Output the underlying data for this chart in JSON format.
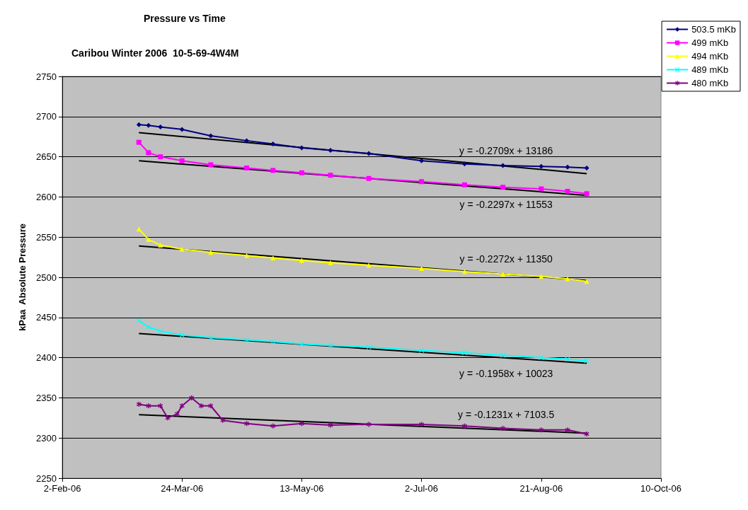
{
  "chart_data": {
    "type": "line",
    "title": "Pressure vs Time",
    "subtitle": "Caribou Winter 2006  10-5-69-4W4M",
    "ylabel": "kPaa  Absolute Pressure",
    "xlim": [
      "2006-02-02",
      "2006-10-10"
    ],
    "xticks": [
      {
        "value": "2006-02-02",
        "label": "2-Feb-06"
      },
      {
        "value": "2006-03-24",
        "label": "24-Mar-06"
      },
      {
        "value": "2006-05-13",
        "label": "13-May-06"
      },
      {
        "value": "2006-07-02",
        "label": "2-Jul-06"
      },
      {
        "value": "2006-08-21",
        "label": "21-Aug-06"
      },
      {
        "value": "2006-10-10",
        "label": "10-Oct-06"
      }
    ],
    "ylim": [
      2250,
      2750
    ],
    "yticks": [
      2250,
      2300,
      2350,
      2400,
      2450,
      2500,
      2550,
      2600,
      2650,
      2700,
      2750
    ],
    "grid": "y",
    "legend": "top right",
    "x": [
      "2006-03-06",
      "2006-03-10",
      "2006-03-15",
      "2006-03-24",
      "2006-04-05",
      "2006-04-20",
      "2006-05-01",
      "2006-05-13",
      "2006-05-25",
      "2006-06-10",
      "2006-07-02",
      "2006-07-20",
      "2006-08-05",
      "2006-08-21",
      "2006-09-01",
      "2006-09-09"
    ],
    "series": [
      {
        "name": "503.5 mKb",
        "color": "#000080",
        "marker": "diamond",
        "values": [
          2690,
          2689,
          2687,
          2684,
          2676,
          2670,
          2666,
          2661,
          2658,
          2654,
          2645,
          2641,
          2639,
          2638,
          2637,
          2636
        ]
      },
      {
        "name": "499 mKb",
        "color": "#ff00ff",
        "marker": "square",
        "values": [
          2668,
          2655,
          2650,
          2645,
          2640,
          2636,
          2633,
          2630,
          2627,
          2623,
          2619,
          2615,
          2612,
          2610,
          2607,
          2604
        ]
      },
      {
        "name": "494 mKb",
        "color": "#ffff00",
        "marker": "triangle",
        "values": [
          2560,
          2547,
          2540,
          2535,
          2531,
          2527,
          2524,
          2521,
          2518,
          2515,
          2511,
          2507,
          2504,
          2501,
          2498,
          2495
        ]
      },
      {
        "name": "489 mKb",
        "color": "#00ffff",
        "marker": "cross",
        "values": [
          2446,
          2438,
          2433,
          2428,
          2425,
          2422,
          2420,
          2417,
          2415,
          2413,
          2409,
          2406,
          2403,
          2400,
          2398,
          2396
        ]
      },
      {
        "name": "480 mKb",
        "color": "#800080",
        "marker": "star",
        "x": [
          "2006-03-06",
          "2006-03-10",
          "2006-03-15",
          "2006-03-18",
          "2006-03-22",
          "2006-03-24",
          "2006-03-28",
          "2006-04-01",
          "2006-04-05",
          "2006-04-10",
          "2006-04-20",
          "2006-05-01",
          "2006-05-13",
          "2006-05-25",
          "2006-06-10",
          "2006-07-02",
          "2006-07-20",
          "2006-08-05",
          "2006-08-21",
          "2006-09-01",
          "2006-09-09"
        ],
        "values": [
          2342,
          2340,
          2340,
          2325,
          2330,
          2340,
          2350,
          2340,
          2340,
          2322,
          2318,
          2315,
          2318,
          2316,
          2317,
          2317,
          2315,
          2312,
          2310,
          2310,
          2305
        ]
      },
      {
        "type": "line",
        "color": "#000000",
        "marker": "none",
        "x": [
          "2006-03-06",
          "2006-09-09"
        ],
        "values": [
          2680,
          2629
        ]
      },
      {
        "type": "line",
        "color": "#000000",
        "marker": "none",
        "x": [
          "2006-03-06",
          "2006-09-09"
        ],
        "values": [
          2645,
          2602
        ]
      },
      {
        "type": "line",
        "color": "#000000",
        "marker": "none",
        "x": [
          "2006-03-06",
          "2006-09-09"
        ],
        "values": [
          2539,
          2496
        ]
      },
      {
        "type": "line",
        "color": "#000000",
        "marker": "none",
        "x": [
          "2006-03-06",
          "2006-09-09"
        ],
        "values": [
          2430,
          2393
        ]
      },
      {
        "type": "line",
        "color": "#000000",
        "marker": "none",
        "x": [
          "2006-03-06",
          "2006-09-09"
        ],
        "values": [
          2329,
          2306
        ]
      }
    ],
    "annotations": [
      "y = -0.2709x + 13186",
      "y = -0.2297x + 11553",
      "y = -0.2272x + 11350",
      "y = -0.1958x + 10023",
      "y = -0.1231x + 7103.5"
    ]
  }
}
